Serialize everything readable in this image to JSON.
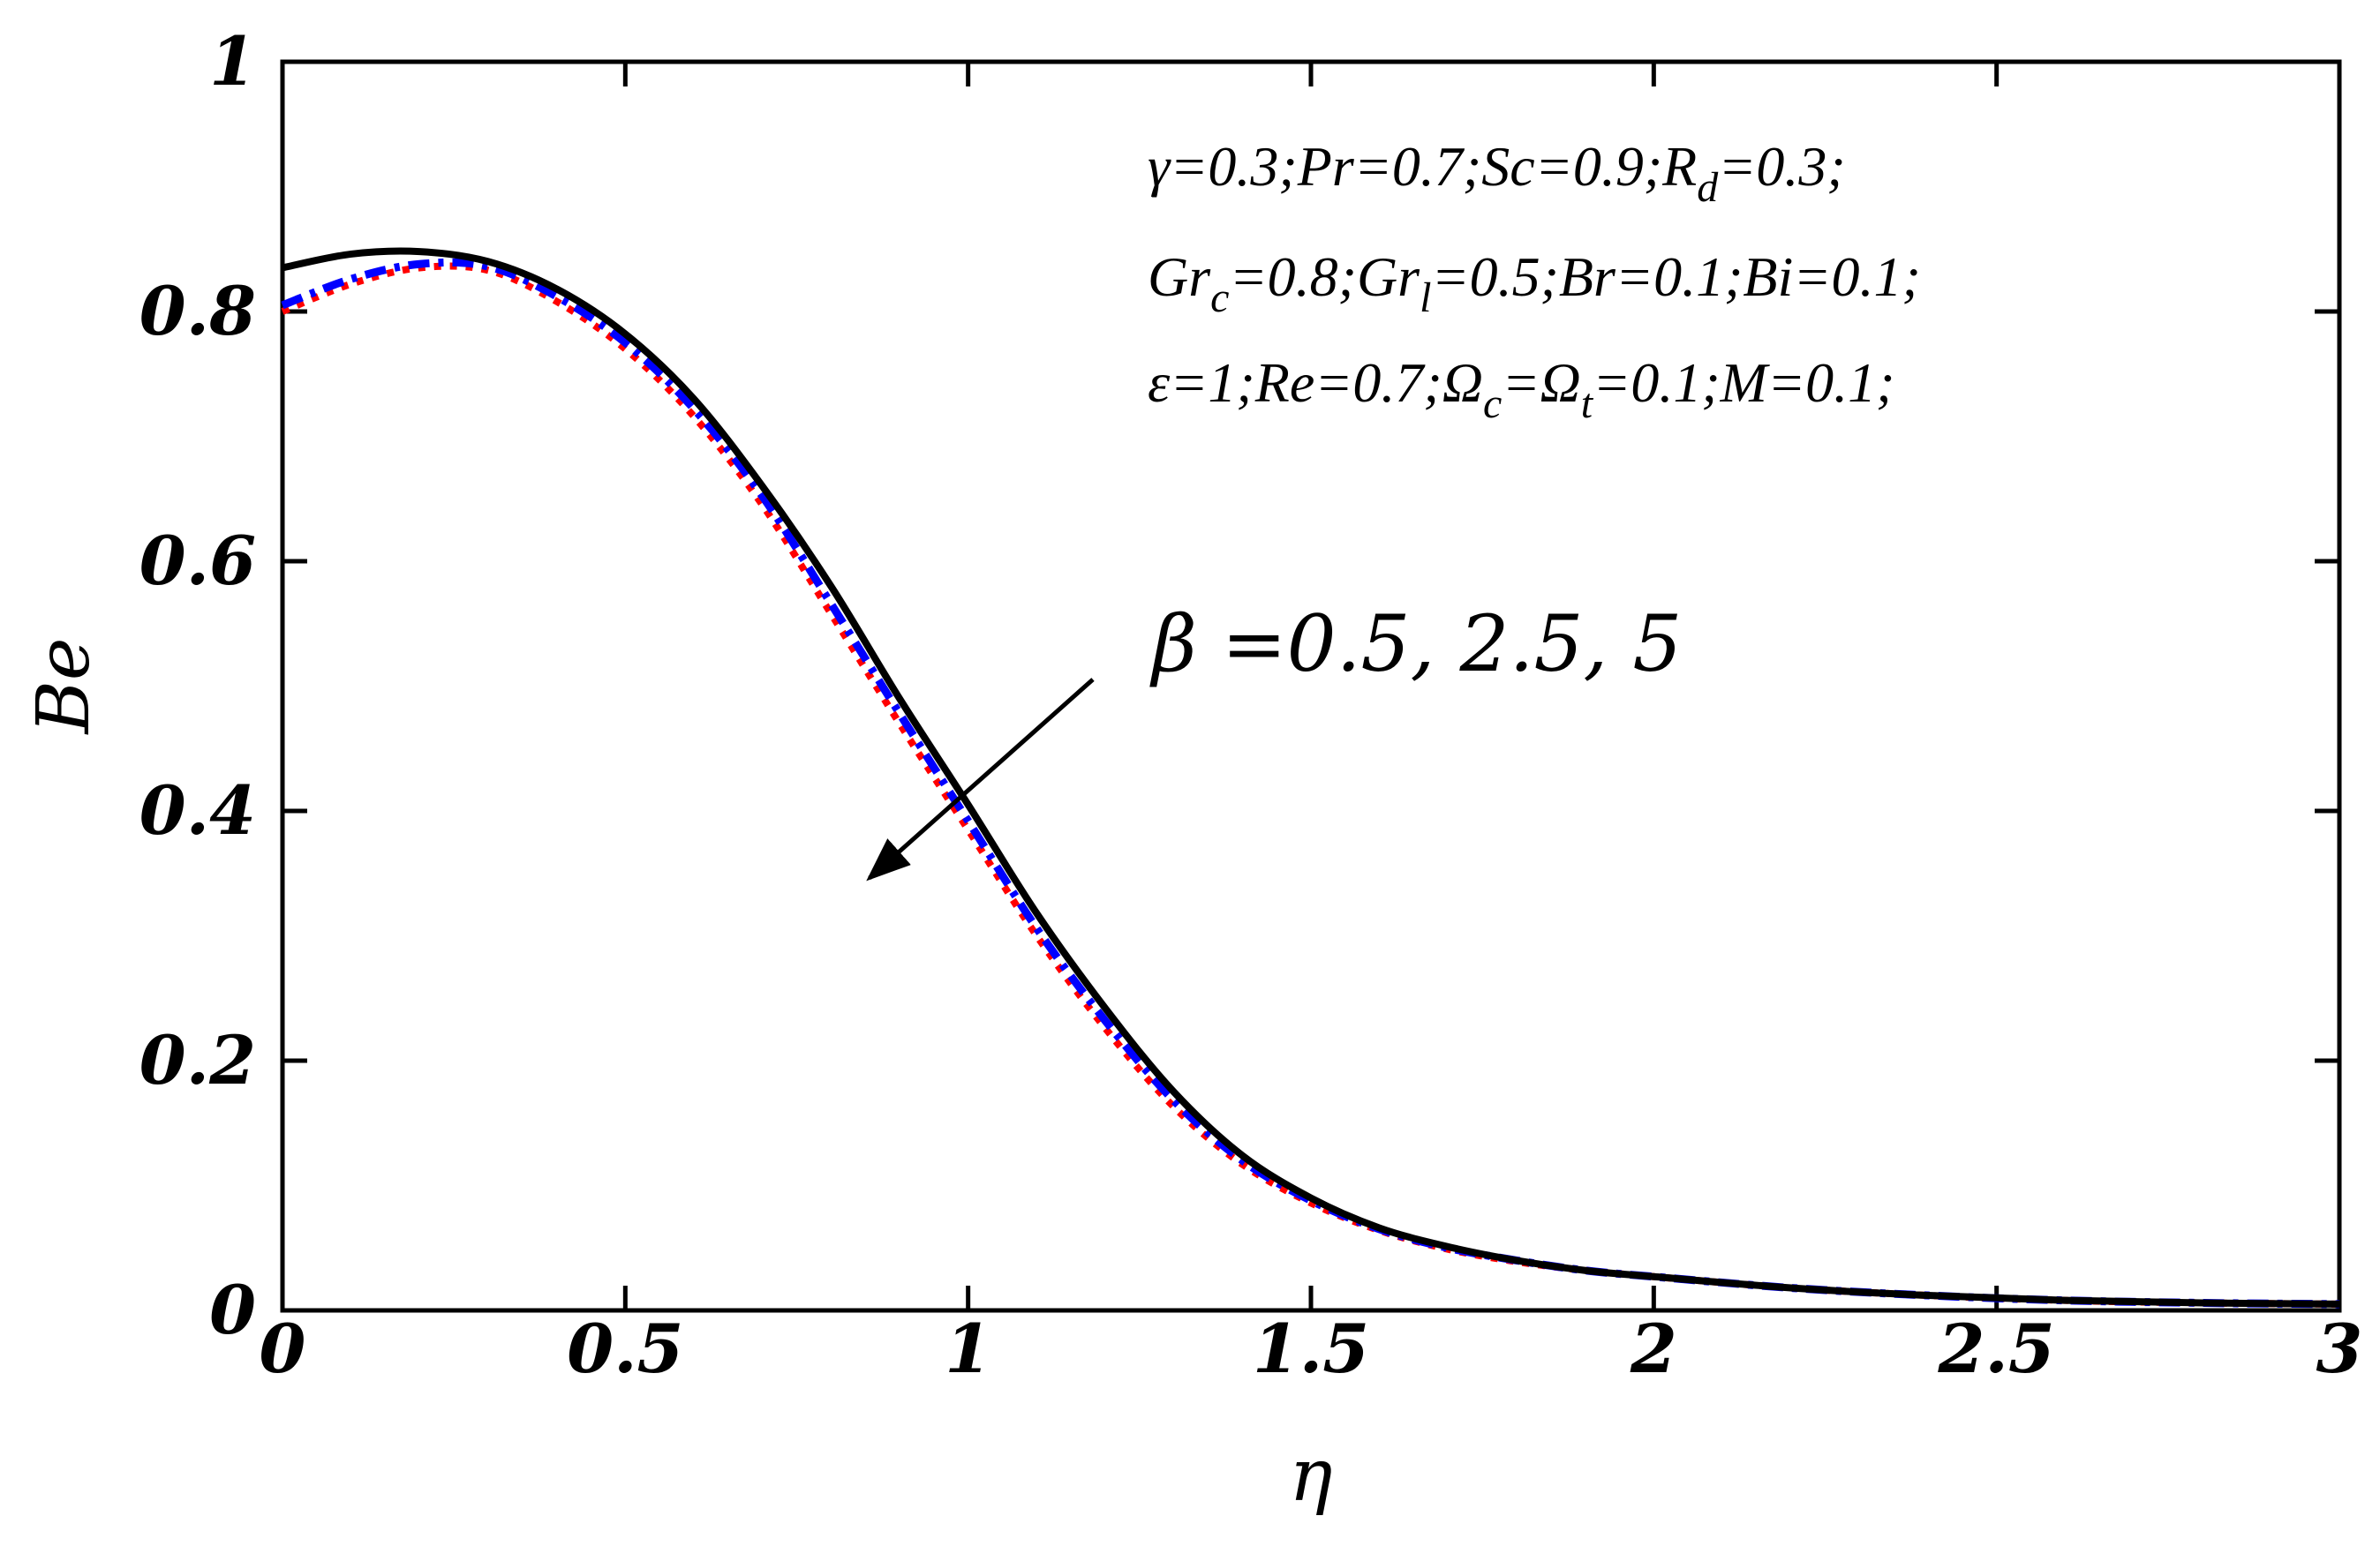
{
  "chart_data": {
    "type": "line",
    "xlabel": "η",
    "ylabel": "Be",
    "xlim": [
      0,
      3
    ],
    "ylim": [
      0,
      1
    ],
    "grid": false,
    "x_ticks": [
      0,
      0.5,
      1,
      1.5,
      2,
      2.5,
      3
    ],
    "y_ticks": [
      0,
      0.2,
      0.4,
      0.6,
      0.8,
      1
    ],
    "x_tick_labels": [
      "0",
      "0.5",
      "1",
      "1.5",
      "2",
      "2.5",
      "3"
    ],
    "y_tick_labels": [
      "0",
      "0.2",
      "0.4",
      "0.6",
      "0.8",
      "1"
    ],
    "x": [
      0,
      0.1,
      0.2,
      0.3,
      0.4,
      0.5,
      0.6,
      0.7,
      0.8,
      0.9,
      1.0,
      1.1,
      1.2,
      1.3,
      1.4,
      1.5,
      1.6,
      1.7,
      1.8,
      1.9,
      2.0,
      2.2,
      2.4,
      2.6,
      2.8,
      3.0
    ],
    "series": [
      {
        "color": "#000000",
        "style": "solid",
        "values": [
          0.835,
          0.846,
          0.848,
          0.84,
          0.818,
          0.782,
          0.73,
          0.66,
          0.58,
          0.49,
          0.405,
          0.318,
          0.242,
          0.175,
          0.124,
          0.09,
          0.066,
          0.051,
          0.04,
          0.032,
          0.027,
          0.018,
          0.012,
          0.008,
          0.006,
          0.005
        ]
      },
      {
        "color": "#0000ff",
        "style": "dash-dot",
        "values": [
          0.805,
          0.826,
          0.838,
          0.836,
          0.812,
          0.775,
          0.722,
          0.652,
          0.566,
          0.478,
          0.392,
          0.306,
          0.232,
          0.168,
          0.12,
          0.088,
          0.065,
          0.05,
          0.04,
          0.032,
          0.027,
          0.018,
          0.012,
          0.008,
          0.006,
          0.005
        ]
      },
      {
        "color": "#ff0000",
        "style": "dotted",
        "values": [
          0.8,
          0.822,
          0.835,
          0.833,
          0.808,
          0.77,
          0.716,
          0.645,
          0.558,
          0.47,
          0.385,
          0.3,
          0.226,
          0.163,
          0.117,
          0.086,
          0.064,
          0.049,
          0.039,
          0.032,
          0.027,
          0.018,
          0.012,
          0.008,
          0.006,
          0.005
        ]
      }
    ],
    "annotations": {
      "params_line1": "γ=0.3;Pr=0.7;Sc=0.9;R_d=0.3;",
      "params_line2": "Gr_c=0.8;Gr_l=0.5;Br=0.1;Bi=0.1;",
      "params_line3": "ε=1;Re=0.7;Ω_c=Ω_t=0.1;M=0.1;",
      "arrow_label": "β =0.5, 2.5, 5"
    }
  }
}
